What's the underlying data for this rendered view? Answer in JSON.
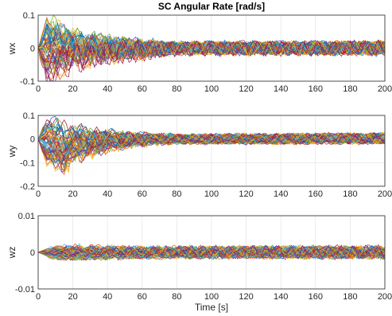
{
  "figure": {
    "title": "SC Angular Rate [rad/s]",
    "xlabel": "Time [s]"
  },
  "chart_data": [
    {
      "type": "line",
      "ylabel": "wx",
      "xlim": [
        0,
        200
      ],
      "ylim": [
        -0.1,
        0.1
      ],
      "xticks": [
        "0",
        "20",
        "40",
        "60",
        "80",
        "100",
        "120",
        "140",
        "160",
        "180",
        "200"
      ],
      "yticks": [
        "0.1",
        "0",
        "-0.1"
      ],
      "grid": true,
      "series_description": "Monte Carlo ensemble of many runs (MATLAB default color order); transient decaying from about ±0.1 at t≈5s to ~±0.03 by t≈60s, with noisy oscillations ±0.03 persisting to t=200s",
      "envelope": {
        "x": [
          0,
          5,
          10,
          20,
          40,
          60,
          80,
          100,
          200
        ],
        "max": [
          0.0,
          0.1,
          0.095,
          0.075,
          0.055,
          0.04,
          0.03,
          0.03,
          0.03
        ],
        "min": [
          0.0,
          -0.12,
          -0.1,
          -0.08,
          -0.06,
          -0.045,
          -0.03,
          -0.03,
          -0.03
        ]
      }
    },
    {
      "type": "line",
      "ylabel": "wy",
      "xlim": [
        0,
        200
      ],
      "ylim": [
        -0.2,
        0.1
      ],
      "xticks": [
        "0",
        "20",
        "40",
        "60",
        "80",
        "100",
        "120",
        "140",
        "160",
        "180",
        "200"
      ],
      "yticks": [
        "0.1",
        "0",
        "-0.1",
        "-0.2"
      ],
      "grid": true,
      "series_description": "Monte Carlo ensemble; transient peaking near +0.09 / -0.15 around t≈10-15s, decaying to ±0.03 noise",
      "envelope": {
        "x": [
          0,
          5,
          10,
          15,
          20,
          40,
          60,
          80,
          100,
          200
        ],
        "max": [
          0.0,
          0.08,
          0.09,
          0.085,
          0.075,
          0.055,
          0.04,
          0.03,
          0.03,
          0.035
        ],
        "min": [
          0.0,
          -0.1,
          -0.13,
          -0.15,
          -0.11,
          -0.07,
          -0.04,
          -0.03,
          -0.03,
          -0.03
        ]
      }
    },
    {
      "type": "line",
      "ylabel": "wz",
      "xlim": [
        0,
        200
      ],
      "ylim": [
        -0.01,
        0.01
      ],
      "xticks": [
        "0",
        "20",
        "40",
        "60",
        "80",
        "100",
        "120",
        "140",
        "160",
        "180",
        "200"
      ],
      "yticks": [
        "0.01",
        "0",
        "-0.01"
      ],
      "grid": true,
      "series_description": "Monte Carlo ensemble; small band about ±0.003 with occasional spikes to ±0.007",
      "envelope": {
        "x": [
          0,
          10,
          20,
          40,
          60,
          100,
          200
        ],
        "max": [
          0.0,
          0.002,
          0.0025,
          0.0025,
          0.0025,
          0.0025,
          0.0025
        ],
        "min": [
          0.0,
          -0.002,
          -0.0025,
          -0.0025,
          -0.0025,
          -0.0025,
          -0.0025
        ]
      }
    }
  ],
  "palette": [
    "#0072BD",
    "#D95319",
    "#EDB120",
    "#7E2F8E",
    "#77AC30",
    "#4DBEEE",
    "#A2142F"
  ]
}
